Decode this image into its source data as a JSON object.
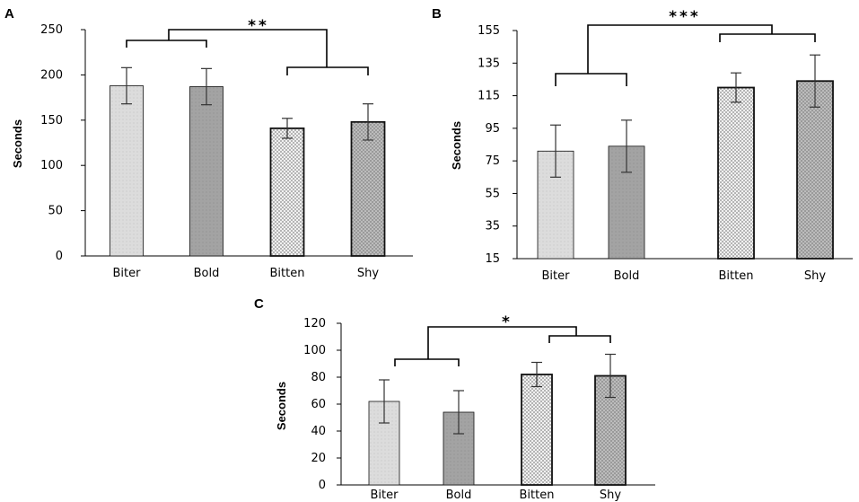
{
  "colors": {
    "biter_fill": "#dcdcdc",
    "bold_fill": "#a3a3a3",
    "bitten_fill": "#ececec",
    "shy_fill": "#b9b9b9",
    "axis": "#000000",
    "error_bar": "#333333"
  },
  "chart_data": [
    {
      "panel": "A",
      "type": "bar",
      "ylabel": "Seconds",
      "categories": [
        "Biter",
        "Bold",
        "Bitten",
        "Shy"
      ],
      "values": [
        188,
        187,
        141,
        148
      ],
      "errors": [
        20,
        20,
        11,
        20
      ],
      "ylim": [
        0,
        250
      ],
      "yticks": [
        "0",
        "50",
        "100",
        "150",
        "200",
        "250"
      ],
      "significance": "**"
    },
    {
      "panel": "B",
      "type": "bar",
      "ylabel": "Seconds",
      "categories": [
        "Biter",
        "Bold",
        "Bitten",
        "Shy"
      ],
      "values": [
        81,
        84,
        120,
        124
      ],
      "errors": [
        16,
        16,
        9,
        16
      ],
      "ylim": [
        15,
        155
      ],
      "yticks": [
        "15",
        "35",
        "55",
        "75",
        "95",
        "115",
        "135",
        "155"
      ],
      "significance": "***"
    },
    {
      "panel": "C",
      "type": "bar",
      "ylabel": "Seconds",
      "categories": [
        "Biter",
        "Bold",
        "Bitten",
        "Shy"
      ],
      "values": [
        62,
        54,
        82,
        81
      ],
      "errors": [
        16,
        16,
        9,
        16
      ],
      "ylim": [
        0,
        120
      ],
      "yticks": [
        "0",
        "20",
        "40",
        "60",
        "80",
        "100",
        "120"
      ],
      "significance": "*"
    }
  ]
}
